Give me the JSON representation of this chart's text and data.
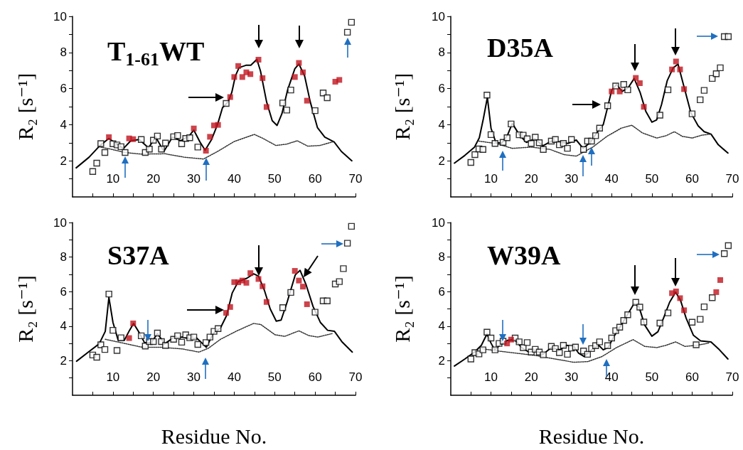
{
  "chart_data": [
    {
      "type": "scatter",
      "title": "T$_{1-61}$WT",
      "ylabel": "R₂ [s⁻¹]",
      "xlim": [
        0,
        70
      ],
      "xticks": [
        {
          "value": 5,
          "label": null
        },
        10,
        {
          "value": 15,
          "label": null
        },
        20,
        {
          "value": 25,
          "label": null
        },
        30,
        {
          "value": 35,
          "label": null
        },
        40,
        {
          "value": 45,
          "label": null
        },
        50,
        {
          "value": 55,
          "label": null
        },
        60,
        {
          "value": 65,
          "label": null
        },
        70
      ],
      "ylim": [
        0,
        10
      ],
      "yticks": [
        {
          "value": 1,
          "label": null
        },
        2,
        {
          "value": 3,
          "label": null
        },
        4,
        {
          "value": 5,
          "label": null
        },
        6,
        {
          "value": 7,
          "label": null
        },
        8,
        {
          "value": 9,
          "label": null
        },
        10
      ],
      "grid": false,
      "series": [
        {
          "marker": "square",
          "color": "#000000",
          "x": [
            5,
            6,
            7,
            8,
            10,
            11,
            12,
            13,
            17,
            18,
            19,
            20,
            21,
            22,
            23,
            25,
            26,
            27,
            28,
            29,
            31,
            38,
            52,
            53,
            54,
            60,
            62,
            63,
            68,
            69
          ],
          "values": [
            1.41,
            1.87,
            2.95,
            2.46,
            2.94,
            2.88,
            2.78,
            2.46,
            3.18,
            2.46,
            2.65,
            3.14,
            3.37,
            2.65,
            2.98,
            3.33,
            3.4,
            2.94,
            3.24,
            3.28,
            2.76,
            5.18,
            5.2,
            4.81,
            5.92,
            4.78,
            5.76,
            5.49,
            9.12,
            9.67
          ]
        },
        {
          "marker": "square",
          "color": "#c0141e",
          "x": [
            9,
            14,
            15,
            30,
            33,
            34,
            35,
            36,
            39,
            40,
            41,
            42,
            43,
            44,
            46,
            47,
            48,
            55,
            56,
            57,
            58,
            65,
            66
          ],
          "values": [
            3.31,
            3.24,
            3.2,
            3.79,
            2.56,
            3.33,
            3.96,
            3.99,
            5.53,
            6.64,
            7.25,
            6.64,
            6.9,
            6.8,
            7.6,
            6.58,
            4.98,
            6.64,
            7.42,
            6.9,
            5.33,
            6.38,
            6.48
          ]
        },
        {
          "type": "line",
          "marker": "none",
          "line_style": "solid",
          "color": "#000000",
          "x": [
            0.9,
            4.1,
            6.8,
            9,
            10.6,
            12.6,
            14.4,
            16.5,
            18.8,
            20.6,
            22.6,
            24.7,
            26.8,
            28.8,
            30,
            31.5,
            32.8,
            34.4,
            35.9,
            37.1,
            38.5,
            39.4,
            40.3,
            41.2,
            42.9,
            44.1,
            45.6,
            46.5,
            48,
            49.4,
            50.6,
            51.8,
            53.2,
            55,
            56,
            57.4,
            58.8,
            60.6,
            62.4,
            64.7,
            66.5,
            69.1
          ],
          "values": [
            1.61,
            2.2,
            2.85,
            3.24,
            2.98,
            2.68,
            3.11,
            3.18,
            2.72,
            3.31,
            2.52,
            3.31,
            3.11,
            3.37,
            3.7,
            3.05,
            2.59,
            3.18,
            4.03,
            4.94,
            5.27,
            5.79,
            6.71,
            7.16,
            7.29,
            7.29,
            7.62,
            6.97,
            5.27,
            4.22,
            3.96,
            4.61,
            5.92,
            7.1,
            7.36,
            6.71,
            5.27,
            3.83,
            3.31,
            3.05,
            2.52,
            2.0
          ]
        },
        {
          "type": "line",
          "marker": "none",
          "line_style": "dotted",
          "color": "#333333",
          "x": [
            6.5,
            9.4,
            13,
            17,
            22.9,
            27.6,
            32.4,
            35.9,
            40,
            45,
            47.1,
            50.3,
            52.9,
            55.6,
            58.2,
            61.2,
            64.7
          ],
          "values": [
            2.78,
            2.65,
            2.46,
            2.37,
            2.39,
            2.2,
            2.1,
            2.52,
            3.07,
            3.46,
            3.24,
            2.85,
            2.92,
            3.11,
            2.81,
            2.85,
            3.07
          ]
        }
      ]
    },
    {
      "type": "scatter",
      "title": "D35A",
      "ylabel": "R₂ [s⁻¹]",
      "xlim": [
        0,
        70
      ],
      "xticks": [
        {
          "value": 5,
          "label": null
        },
        10,
        {
          "value": 15,
          "label": null
        },
        20,
        {
          "value": 25,
          "label": null
        },
        30,
        {
          "value": 35,
          "label": null
        },
        40,
        {
          "value": 45,
          "label": null
        },
        50,
        {
          "value": 55,
          "label": null
        },
        60,
        {
          "value": 65,
          "label": null
        },
        70
      ],
      "ylim": [
        0,
        10
      ],
      "yticks": [
        {
          "value": 1,
          "label": null
        },
        2,
        {
          "value": 3,
          "label": null
        },
        4,
        {
          "value": 5,
          "label": null
        },
        6,
        {
          "value": 7,
          "label": null
        },
        8,
        {
          "value": 9,
          "label": null
        },
        10
      ],
      "grid": false,
      "series": [
        {
          "marker": "square",
          "color": "#000000",
          "x": [
            5,
            6,
            7,
            8,
            9,
            10,
            11,
            13,
            14,
            15,
            17,
            18,
            19,
            20,
            21,
            22,
            23,
            25,
            26,
            27,
            28,
            29,
            30,
            33,
            34,
            35,
            36,
            37,
            39,
            41,
            43,
            44,
            52,
            54,
            60,
            62,
            63,
            65,
            66,
            67,
            68,
            69
          ],
          "values": [
            1.91,
            2.34,
            2.66,
            2.63,
            5.64,
            3.45,
            2.96,
            3.02,
            3.28,
            4.04,
            3.44,
            3.42,
            3.22,
            2.96,
            3.31,
            3.0,
            2.63,
            3.09,
            3.18,
            2.89,
            2.96,
            2.69,
            3.18,
            2.63,
            3.09,
            3.09,
            3.39,
            3.81,
            5.05,
            6.14,
            6.23,
            5.93,
            4.53,
            5.93,
            4.6,
            5.38,
            5.9,
            6.56,
            6.82,
            7.15,
            8.88,
            8.88
          ]
        },
        {
          "marker": "square",
          "color": "#c0141e",
          "x": [
            40,
            42,
            46,
            47,
            48,
            55,
            56,
            57,
            58
          ],
          "values": [
            5.84,
            5.84,
            6.59,
            6.3,
            4.99,
            7.06,
            7.5,
            7.06,
            5.97
          ]
        },
        {
          "type": "line",
          "marker": "none",
          "line_style": "solid",
          "color": "#000000",
          "x": [
            0.9,
            3.5,
            5.9,
            7.1,
            8.1,
            9.1,
            10,
            11.2,
            12.6,
            14.1,
            15.3,
            17.1,
            18.8,
            20.9,
            22.9,
            25,
            27.1,
            29.1,
            31.2,
            32.9,
            34.7,
            36.5,
            37.9,
            38.8,
            40,
            41.2,
            42.6,
            44.1,
            45.6,
            47.1,
            48.5,
            50,
            51.2,
            52.4,
            53.8,
            55.3,
            56.5,
            57.9,
            59.7,
            61.5,
            63,
            64.7,
            66.5,
            68.9
          ],
          "values": [
            1.87,
            2.3,
            2.76,
            3.28,
            4.33,
            5.51,
            3.81,
            3.02,
            2.96,
            3.42,
            4.07,
            3.42,
            3.02,
            3.22,
            2.83,
            3.09,
            3.05,
            2.96,
            3.15,
            2.69,
            3.02,
            3.61,
            4.0,
            4.79,
            5.9,
            6.23,
            5.84,
            6.04,
            6.56,
            5.77,
            4.73,
            4.14,
            4.27,
            5.12,
            6.43,
            7.15,
            7.35,
            6.17,
            4.66,
            3.94,
            3.61,
            3.48,
            2.89,
            2.43
          ]
        },
        {
          "type": "line",
          "marker": "none",
          "line_style": "dotted",
          "color": "#333333",
          "x": [
            7,
            11.2,
            15.3,
            20,
            24.7,
            28.2,
            31.2,
            35.3,
            38.8,
            42.4,
            45,
            47.6,
            51.2,
            53.5,
            55.6,
            57.6,
            60,
            62.4,
            64.7
          ],
          "values": [
            3.09,
            2.96,
            2.69,
            2.76,
            2.63,
            2.34,
            2.26,
            2.76,
            3.35,
            3.81,
            3.97,
            3.55,
            3.26,
            3.39,
            3.61,
            3.35,
            3.26,
            3.42,
            3.48
          ]
        }
      ]
    },
    {
      "type": "scatter",
      "title": "S37A",
      "xlabel": "Residue No.",
      "ylabel": "R₂ [s⁻¹]",
      "xlim": [
        0,
        70
      ],
      "xticks": [
        {
          "value": 5,
          "label": null
        },
        10,
        {
          "value": 15,
          "label": null
        },
        20,
        {
          "value": 25,
          "label": null
        },
        30,
        {
          "value": 35,
          "label": null
        },
        40,
        {
          "value": 45,
          "label": null
        },
        50,
        {
          "value": 55,
          "label": null
        },
        60,
        {
          "value": 65,
          "label": null
        },
        70
      ],
      "ylim": [
        0,
        10
      ],
      "yticks": [
        {
          "value": 1,
          "label": null
        },
        2,
        {
          "value": 3,
          "label": null
        },
        4,
        {
          "value": 5,
          "label": null
        },
        6,
        {
          "value": 7,
          "label": null
        },
        8,
        {
          "value": 9,
          "label": null
        },
        10
      ],
      "grid": false,
      "series": [
        {
          "marker": "square",
          "color": "#000000",
          "x": [
            5,
            6,
            7,
            8,
            9,
            10,
            11,
            12,
            17,
            18,
            19,
            20,
            21,
            22,
            23,
            25,
            26,
            27,
            28,
            29,
            30,
            31,
            33,
            34,
            35,
            36,
            52,
            54,
            60,
            62,
            63,
            65,
            66,
            67,
            68,
            69
          ],
          "values": [
            2.33,
            2.2,
            2.92,
            2.65,
            5.86,
            3.76,
            2.59,
            3.33,
            3.44,
            2.85,
            3.11,
            3.11,
            3.6,
            3.11,
            2.88,
            3.24,
            3.44,
            3.07,
            3.5,
            3.33,
            3.37,
            2.94,
            3.05,
            3.37,
            3.7,
            3.86,
            5.07,
            5.95,
            4.81,
            5.46,
            5.46,
            6.44,
            6.58,
            7.33,
            8.8,
            9.78
          ]
        },
        {
          "marker": "square",
          "color": "#c0141e",
          "x": [
            14,
            15,
            38,
            39,
            40,
            41,
            42,
            43,
            44,
            46,
            47,
            48,
            55,
            56,
            57,
            58
          ],
          "values": [
            3.31,
            4.16,
            4.77,
            5.11,
            6.55,
            6.54,
            6.64,
            6.51,
            7.07,
            6.73,
            6.31,
            5.4,
            7.2,
            6.64,
            6.29,
            5.27
          ]
        },
        {
          "type": "line",
          "marker": "none",
          "line_style": "solid",
          "color": "#000000",
          "x": [
            1,
            4.2,
            6.6,
            8.1,
            9,
            10,
            11.3,
            12.8,
            14.1,
            15.1,
            16.3,
            17.8,
            19.5,
            21,
            22.8,
            24.8,
            27.2,
            29.2,
            30.7,
            31.9,
            33.1,
            34.8,
            36.6,
            38.1,
            39.5,
            41,
            43.1,
            44.8,
            46,
            47.5,
            48.9,
            50.4,
            51.6,
            53.1,
            55.1,
            56.3,
            57.8,
            59.5,
            61.3,
            63.1,
            64.8,
            66.6,
            69.2
          ],
          "values": [
            1.97,
            2.55,
            2.98,
            3.7,
            5.66,
            4.22,
            3.18,
            3.18,
            3.76,
            4.16,
            3.7,
            3.05,
            3.05,
            3.57,
            2.98,
            3.31,
            3.37,
            3.24,
            3.31,
            3.05,
            2.78,
            3.57,
            3.9,
            4.61,
            5.92,
            6.58,
            6.77,
            7.03,
            6.9,
            6.05,
            5.0,
            4.29,
            4.35,
            5.4,
            6.97,
            7.23,
            6.38,
            5.14,
            4.22,
            3.76,
            3.7,
            3.11,
            2.5
          ]
        },
        {
          "type": "line",
          "marker": "none",
          "line_style": "dotted",
          "color": "#333333",
          "x": [
            8.1,
            12.5,
            17.2,
            21.9,
            27.2,
            31.3,
            33.6,
            36.6,
            40.7,
            44.8,
            46.6,
            50.1,
            52.5,
            56,
            58.4,
            60.7,
            64.2
          ],
          "values": [
            3.24,
            3.02,
            2.78,
            2.78,
            2.68,
            2.5,
            2.72,
            3.24,
            3.73,
            4.16,
            4.09,
            3.5,
            3.41,
            3.73,
            3.46,
            3.37,
            3.57
          ]
        }
      ]
    },
    {
      "type": "scatter",
      "title": "W39A",
      "xlabel": "Residue No.",
      "ylabel": "R₂ [s⁻¹]",
      "xlim": [
        0,
        70
      ],
      "xticks": [
        {
          "value": 5,
          "label": null
        },
        10,
        {
          "value": 15,
          "label": null
        },
        20,
        {
          "value": 25,
          "label": null
        },
        30,
        {
          "value": 35,
          "label": null
        },
        40,
        {
          "value": 45,
          "label": null
        },
        50,
        {
          "value": 55,
          "label": null
        },
        60,
        {
          "value": 65,
          "label": null
        },
        70
      ],
      "ylim": [
        0,
        10
      ],
      "yticks": [
        {
          "value": 1,
          "label": null
        },
        2,
        {
          "value": 3,
          "label": null
        },
        4,
        {
          "value": 5,
          "label": null
        },
        6,
        {
          "value": 7,
          "label": null
        },
        8,
        {
          "value": 9,
          "label": null
        },
        10
      ],
      "grid": false,
      "series": [
        {
          "marker": "square",
          "color": "#000000",
          "x": [
            5,
            6,
            7,
            8,
            9,
            10,
            11,
            12,
            13,
            16,
            17,
            18,
            19,
            20,
            21,
            22,
            23,
            25,
            26,
            27,
            28,
            29,
            30,
            31,
            33,
            34,
            35,
            36,
            37,
            39,
            40,
            41,
            42,
            43,
            44,
            46,
            47,
            48,
            52,
            54,
            60,
            61,
            62,
            63,
            65,
            68,
            69
          ],
          "values": [
            2.1,
            2.47,
            2.39,
            2.63,
            3.65,
            3.31,
            2.63,
            3.0,
            3.13,
            3.31,
            3.09,
            2.76,
            3.05,
            2.5,
            2.66,
            2.5,
            2.34,
            2.83,
            2.7,
            2.47,
            2.89,
            2.37,
            2.73,
            2.79,
            2.56,
            2.37,
            2.7,
            2.87,
            3.09,
            2.87,
            3.31,
            3.74,
            3.94,
            4.33,
            4.66,
            5.38,
            5.1,
            4.24,
            4.18,
            4.77,
            4.23,
            2.92,
            4.4,
            5.12,
            5.65,
            8.2,
            8.66
          ]
        },
        {
          "marker": "square",
          "color": "#c0141e",
          "x": [
            14,
            15,
            55,
            56,
            57,
            58,
            66,
            67
          ],
          "values": [
            3.0,
            3.22,
            5.91,
            6.01,
            5.62,
            4.92,
            5.97,
            6.67
          ]
        },
        {
          "type": "line",
          "marker": "none",
          "line_style": "solid",
          "color": "#000000",
          "x": [
            0.9,
            3.5,
            5.9,
            7.6,
            9,
            10,
            10.9,
            12.6,
            14.1,
            15.9,
            17.6,
            19.4,
            21.2,
            22.9,
            25,
            27.1,
            28.8,
            30.6,
            31.8,
            33.2,
            35,
            36.8,
            37.9,
            39.1,
            40.6,
            42.4,
            44.1,
            45.6,
            46.8,
            48.2,
            50,
            51.5,
            52.9,
            54.4,
            55.9,
            57.1,
            58.5,
            60.3,
            62.1,
            64.7,
            66.8,
            68.9
          ],
          "values": [
            1.69,
            2.1,
            2.5,
            2.89,
            3.55,
            3.02,
            2.63,
            2.96,
            3.18,
            3.22,
            2.76,
            2.5,
            2.56,
            2.37,
            2.76,
            2.63,
            2.89,
            2.83,
            2.43,
            2.24,
            2.63,
            2.89,
            2.63,
            2.76,
            3.42,
            4.07,
            4.73,
            5.32,
            5.12,
            4.07,
            3.42,
            3.68,
            4.47,
            5.38,
            5.97,
            5.51,
            4.47,
            3.48,
            3.15,
            3.09,
            2.63,
            2.1
          ]
        },
        {
          "type": "line",
          "marker": "none",
          "line_style": "dotted",
          "color": "#333333",
          "x": [
            7.6,
            11.8,
            16.5,
            21.2,
            25.9,
            30.6,
            34.1,
            37.6,
            41.2,
            45.3,
            48.2,
            51.2,
            53.5,
            55.9,
            58.2,
            61.2,
            64.1
          ],
          "values": [
            2.7,
            2.56,
            2.43,
            2.3,
            2.1,
            1.91,
            1.95,
            2.24,
            2.76,
            3.22,
            2.83,
            2.76,
            2.89,
            3.09,
            2.83,
            2.89,
            3.02
          ]
        }
      ]
    }
  ]
}
